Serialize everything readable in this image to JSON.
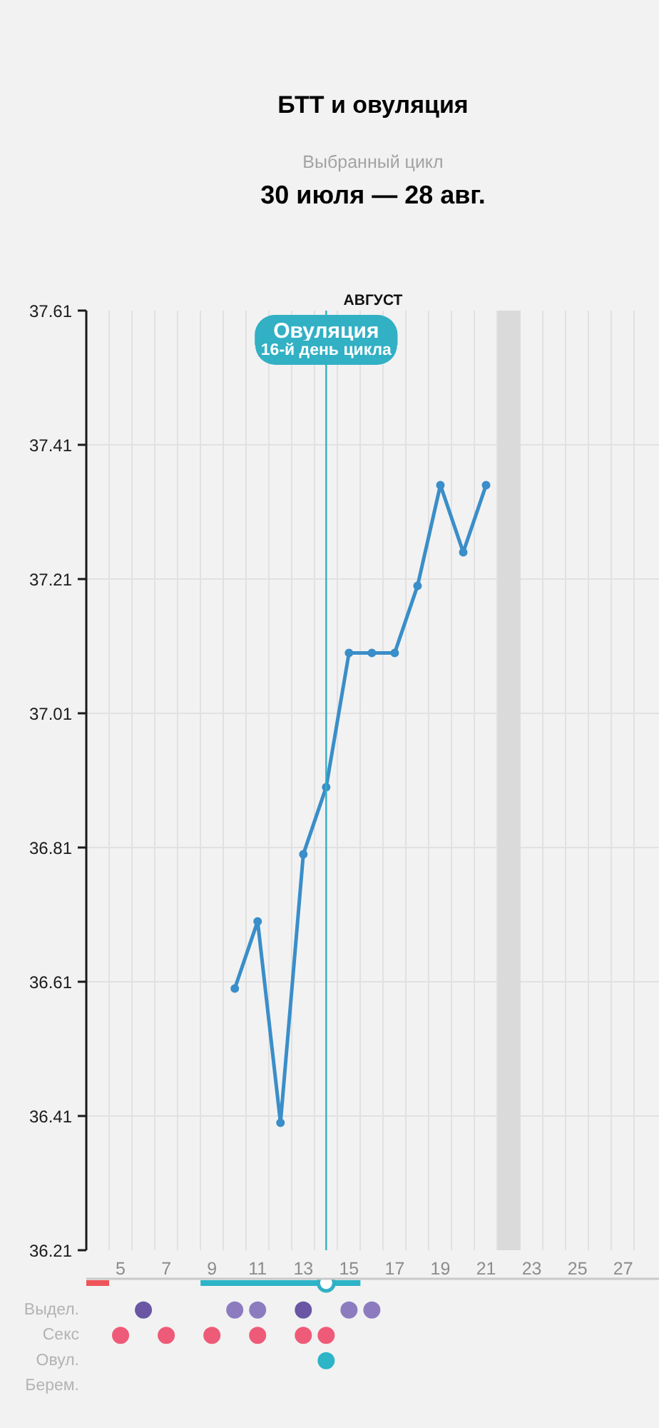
{
  "chart_data": [
    {
      "type": "line",
      "title": "БТТ и овуляция",
      "subtitle": "30 июля — 28 авг.",
      "xlabel": "АВГУСТ",
      "annotations": [
        "Выбранный цикл",
        {
          "text": "16-й день цикла",
          "x": 14
        }
      ],
      "x": [
        10,
        11,
        12,
        13,
        14,
        15,
        16,
        17,
        18,
        19,
        20,
        21
      ],
      "values": [
        36.6,
        36.7,
        36.4,
        36.8,
        36.9,
        37.1,
        37.1,
        37.1,
        37.2,
        37.35,
        37.25,
        37.35
      ],
      "color": "#3a8ec9",
      "marker": "circle",
      "xlim": [
        3.5,
        28.6
      ],
      "tick_labels": "y",
      "xticks": [
        {
          "value": 4.5,
          "label": null
        },
        {
          "value": 5.5,
          "label": null
        },
        {
          "value": 6.5,
          "label": null
        },
        {
          "value": 7.5,
          "label": null
        },
        {
          "value": 8.5,
          "label": null
        },
        {
          "value": 9.5,
          "label": null
        },
        {
          "value": 10.5,
          "label": null
        },
        {
          "value": 11.5,
          "label": null
        },
        {
          "value": 12.5,
          "label": null
        },
        {
          "value": 13.5,
          "label": null
        },
        {
          "value": 14.5,
          "label": null
        },
        {
          "value": 15.5,
          "label": null
        },
        {
          "value": 16.5,
          "label": null
        },
        {
          "value": 17.5,
          "label": null
        },
        {
          "value": 18.5,
          "label": null
        },
        {
          "value": 19.5,
          "label": null
        },
        {
          "value": 20.5,
          "label": null
        },
        {
          "value": 21.5,
          "label": null
        },
        {
          "value": 22.5,
          "label": null
        },
        {
          "value": 23.5,
          "label": null
        },
        {
          "value": 24.5,
          "label": null
        },
        {
          "value": 25.5,
          "label": null
        },
        {
          "value": 26.5,
          "label": null
        },
        {
          "value": 27.5,
          "label": null
        }
      ],
      "ylim": [
        36.21,
        37.61
      ],
      "yticks": [
        36.21,
        36.41,
        36.61,
        36.81,
        37.01,
        37.21,
        37.41,
        37.61
      ],
      "grid": true,
      "ref_lines": [
        {
          "axis": "x",
          "value": 14,
          "label": "Овуляция",
          "color": "#32b0c4"
        }
      ],
      "bands": [
        {
          "axis": "x",
          "from": 21.5,
          "to": 22.5,
          "color": "#dadada"
        }
      ]
    },
    {
      "type": "scatter",
      "orientation": "horizontal",
      "categories": [
        null,
        "Выдел.",
        "Секс",
        "Овул.",
        "Берем."
      ],
      "xlim": [
        3.5,
        28.6
      ],
      "xticks": [
        5,
        7,
        9,
        11,
        13,
        15,
        17,
        19,
        21,
        23,
        25,
        27
      ],
      "marker": "circle",
      "series": [
        {
          "type": "bar",
          "color": "#ef5459",
          "base": [
            3.5,
            null,
            null,
            null,
            null
          ],
          "values": [
            1,
            null,
            null,
            null,
            null
          ]
        },
        {
          "type": "bar",
          "color": "#2db4c7",
          "base": [
            8.5,
            null,
            null,
            null,
            null
          ],
          "values": [
            7,
            null,
            null,
            null,
            null
          ]
        },
        {
          "color": "#32b0c4",
          "values": [
            14,
            null,
            null,
            null,
            null
          ]
        },
        {
          "values": [
            null,
            6,
            5,
            14,
            null
          ],
          "colors": [
            null,
            "#6a56a4",
            "#ee5b78",
            "#2db4c7",
            null
          ]
        },
        {
          "values": [
            null,
            10,
            7,
            null,
            null
          ],
          "colors": [
            null,
            "#8c7cbf",
            "#ee5b78",
            null,
            null
          ]
        },
        {
          "values": [
            null,
            11,
            9,
            null,
            null
          ],
          "colors": [
            null,
            "#8c7cbf",
            "#ee5b78",
            null,
            null
          ]
        },
        {
          "values": [
            null,
            13,
            11,
            null,
            null
          ],
          "colors": [
            null,
            "#6a56a4",
            "#ee5b78",
            null,
            null
          ]
        },
        {
          "values": [
            null,
            15,
            13,
            null,
            null
          ],
          "colors": [
            null,
            "#8c7cbf",
            "#ee5b78",
            null,
            null
          ]
        },
        {
          "values": [
            null,
            16,
            14,
            null,
            null
          ],
          "colors": [
            null,
            "#8c7cbf",
            "#ee5b78",
            null,
            null
          ]
        }
      ]
    }
  ]
}
